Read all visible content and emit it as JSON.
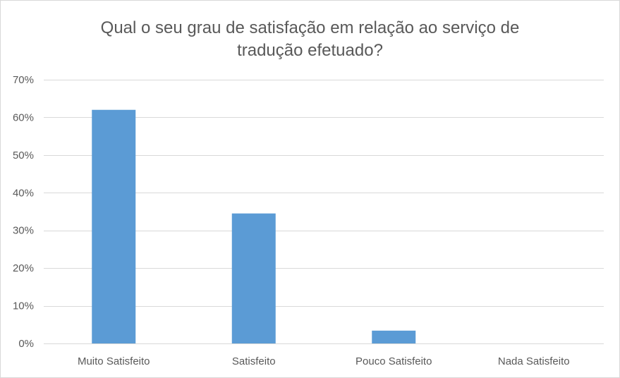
{
  "chart_data": {
    "type": "bar",
    "title_lines": [
      "Qual o seu grau de satisfação em relação ao serviço de",
      "tradução efetuado?"
    ],
    "categories": [
      "Muito Satisfeito",
      "Satisfeito",
      "Pouco Satisfeito",
      "Nada Satisfeito"
    ],
    "values": [
      62,
      34.5,
      3.4,
      0
    ],
    "ylim": [
      0,
      70
    ],
    "yticks": [
      0,
      10,
      20,
      30,
      40,
      50,
      60,
      70
    ],
    "ytick_labels": [
      "0%",
      "10%",
      "20%",
      "30%",
      "40%",
      "50%",
      "60%",
      "70%"
    ],
    "grid": true,
    "bar_color": "#5b9bd5",
    "grid_color": "#d9d9d9"
  }
}
